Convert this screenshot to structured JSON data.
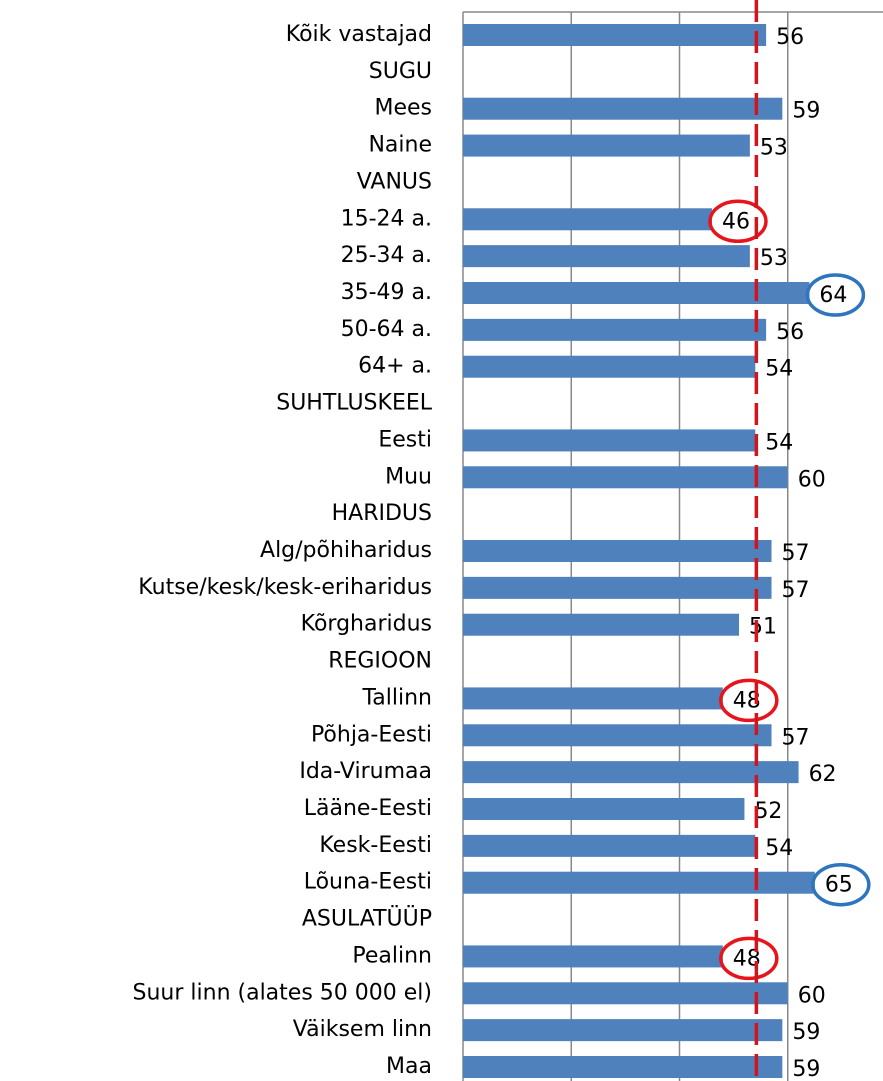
{
  "chart_data": {
    "type": "barh",
    "categories": [
      "Kõik vastajad",
      "SUGU",
      "Mees",
      "Naine",
      "VANUS",
      "15-24 a.",
      "25-34 a.",
      "35-49 a.",
      "50-64 a.",
      "64+ a.",
      "SUHTLUSKEEL",
      "Eesti",
      "Muu",
      "HARIDUS",
      "Alg/põhiharidus",
      "Kutse/kesk/kesk-eriharidus",
      "Kõrgharidus",
      "REGIOON",
      "Tallinn",
      "Põhja-Eesti",
      "Ida-Virumaa",
      "Lääne-Eesti",
      "Kesk-Eesti",
      "Lõuna-Eesti",
      "ASULATÜÜP",
      "Pealinn",
      "Suur linn (alates 50 000 el)",
      "Väiksem linn",
      "Maa"
    ],
    "values": [
      56,
      null,
      59,
      53,
      null,
      46,
      53,
      64,
      56,
      54,
      null,
      54,
      60,
      null,
      57,
      57,
      51,
      null,
      48,
      57,
      62,
      52,
      54,
      65,
      null,
      48,
      60,
      59,
      59
    ],
    "circle_colors": [
      null,
      null,
      null,
      null,
      null,
      "#e8141b",
      null,
      "#2e75c0",
      null,
      null,
      null,
      null,
      null,
      null,
      null,
      null,
      null,
      null,
      "#e8141b",
      null,
      null,
      null,
      null,
      "#2e75c0",
      null,
      "#e8141b",
      null,
      null,
      null
    ],
    "color": "#4f81bd",
    "xlim": [
      0,
      80
    ],
    "xticks": [
      0,
      20,
      40,
      60,
      80
    ],
    "grid": true,
    "reference_line": {
      "value": 54.2,
      "color": "#d0161c"
    }
  }
}
